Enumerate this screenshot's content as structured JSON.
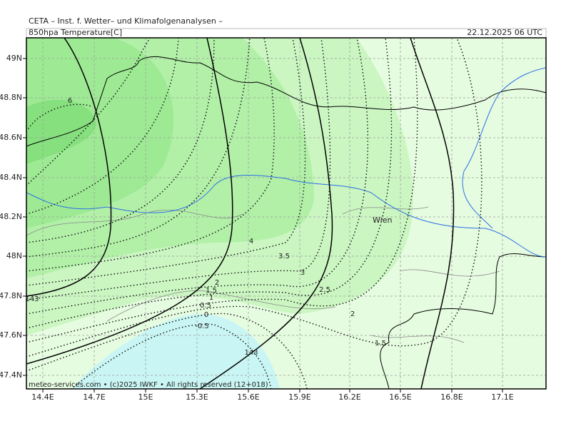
{
  "header": {
    "title": "CETA – Inst. f. Wetter– und Klimafolgenanalysen –",
    "parameter": "850hpa Temperature[C]",
    "valid_time": "22.12.2025 06 UTC"
  },
  "map": {
    "lon_labels": [
      "14.4E",
      "14.7E",
      "15E",
      "15.3E",
      "15.6E",
      "15.9E",
      "16.2E",
      "16.5E",
      "16.8E",
      "17.1E"
    ],
    "lat_labels": [
      "49N",
      "48.8N",
      "48.6N",
      "48.4N",
      "48.2N",
      "48N",
      "47.8N",
      "47.6N",
      "47.4N"
    ],
    "city": "Wien",
    "contour_labels": [
      "6",
      "4",
      "3.5",
      "3",
      "2.5",
      "2",
      "1.5",
      "2",
      "1.5",
      "1",
      "0.5",
      "0",
      "-0.5",
      "143",
      "143"
    ],
    "footer": "meteo-services.com • (c)2025 IWKF • All rights reserved (12+018)"
  }
}
